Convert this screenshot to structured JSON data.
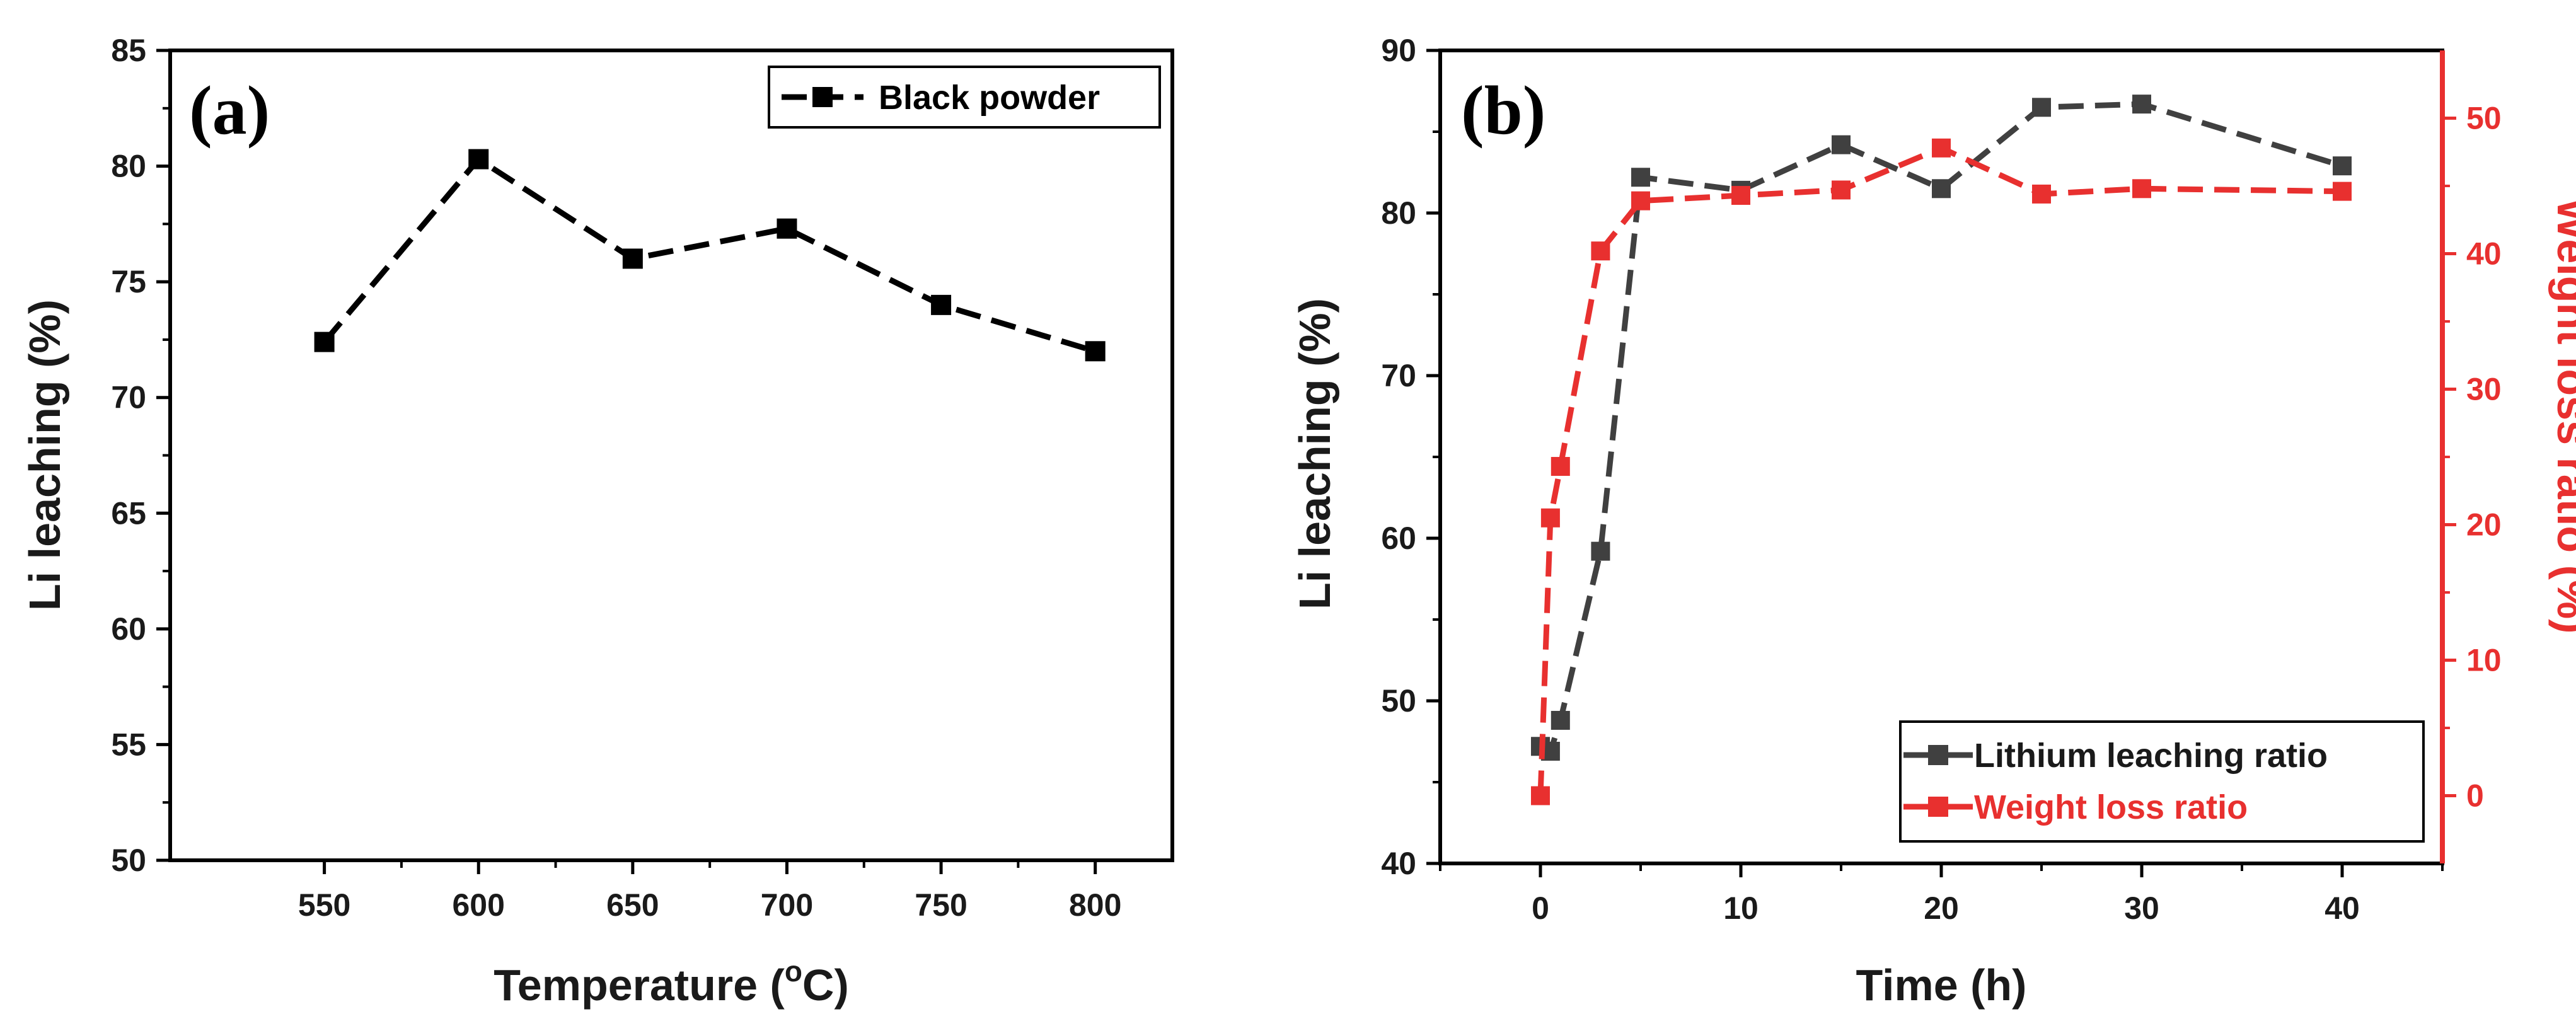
{
  "chart_data": [
    {
      "type": "line",
      "panel_label": "(a)",
      "title": "",
      "xlabel_main": "Temperature (",
      "xlabel_sup": "o",
      "xlabel_end": "C)",
      "ylabel": "Li leaching (%)",
      "xlim": [
        500,
        825
      ],
      "ylim": [
        50,
        85
      ],
      "xticks": [
        550,
        600,
        650,
        700,
        750,
        800
      ],
      "yticks": [
        50,
        55,
        60,
        65,
        70,
        75,
        80,
        85
      ],
      "grid": false,
      "legend_position": "top-right",
      "series": [
        {
          "name": "Black powder",
          "color": "#000000",
          "x": [
            550,
            600,
            650,
            700,
            750,
            800
          ],
          "y": [
            72.4,
            80.3,
            76.0,
            77.3,
            74.0,
            72.0
          ]
        }
      ]
    },
    {
      "type": "line",
      "panel_label": "(b)",
      "title": "",
      "xlabel": "Time (h)",
      "ylabel": "Li leaching (%)",
      "y2label": "Weight loss ratio (%)",
      "xlim": [
        -5,
        45
      ],
      "ylim": [
        40,
        90
      ],
      "y2lim": [
        -5,
        55
      ],
      "xticks": [
        0,
        10,
        20,
        30,
        40
      ],
      "yticks": [
        40,
        50,
        60,
        70,
        80,
        90
      ],
      "y2ticks": [
        0,
        10,
        20,
        30,
        40,
        50
      ],
      "grid": false,
      "legend_position": "bottom-right",
      "series": [
        {
          "name": "Lithium leaching ratio",
          "color": "#404040",
          "axis": "left",
          "x": [
            0,
            0.5,
            1,
            3,
            5,
            10,
            15,
            20,
            25,
            30,
            40
          ],
          "y": [
            47.2,
            46.9,
            48.8,
            59.2,
            82.2,
            81.4,
            84.2,
            81.5,
            86.5,
            86.7,
            82.9
          ]
        },
        {
          "name": "Weight loss ratio",
          "color": "#e8302f",
          "axis": "right",
          "x": [
            0,
            0.5,
            1,
            3,
            5,
            10,
            15,
            20,
            25,
            30,
            40
          ],
          "y": [
            0,
            20.5,
            24.3,
            40.2,
            43.9,
            44.3,
            44.7,
            47.8,
            44.4,
            44.8,
            44.6
          ]
        }
      ]
    }
  ]
}
